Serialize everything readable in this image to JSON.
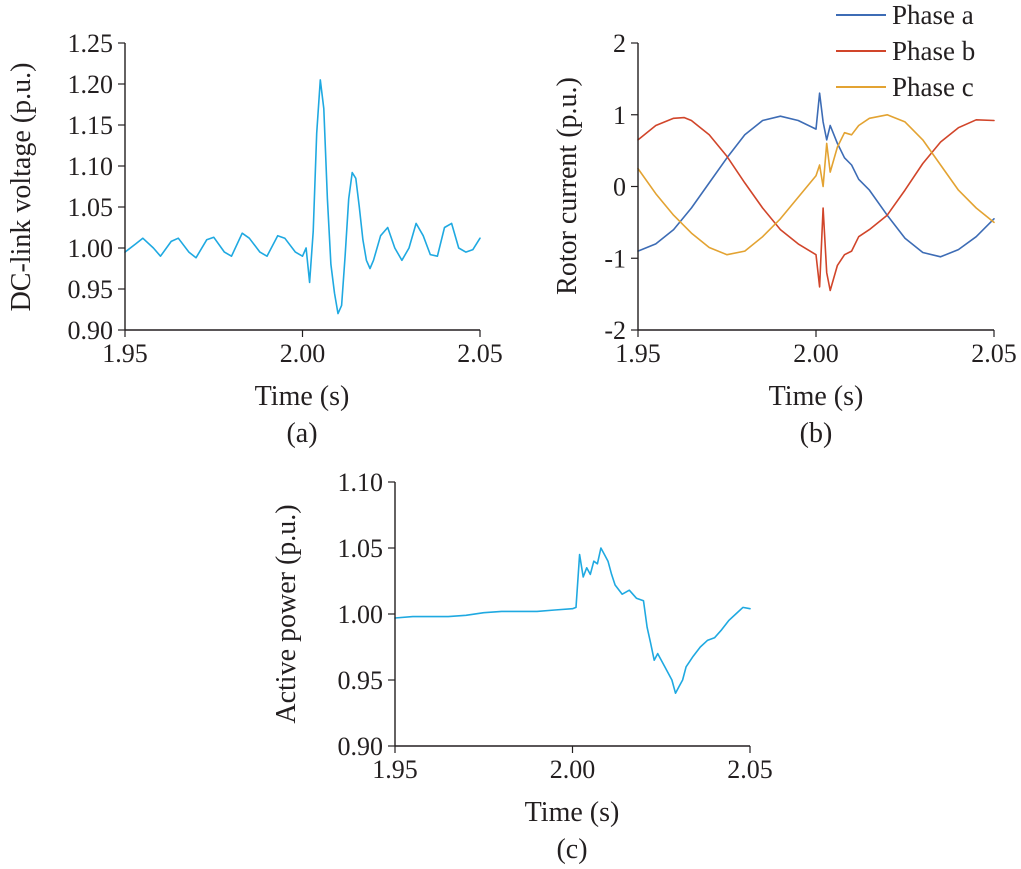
{
  "colors": {
    "cyan": "#1fa9e1",
    "phase_a": "#3d6cb5",
    "phase_b": "#d1452a",
    "phase_c": "#e3a332",
    "axis": "#231f20"
  },
  "chart_data": [
    {
      "id": "a",
      "type": "line",
      "caption": "(a)",
      "xlabel": "Time (s)",
      "ylabel": "DC-link voltage (p.u.)",
      "xlim": [
        1.95,
        2.05
      ],
      "ylim": [
        0.9,
        1.25
      ],
      "xticks": [
        "1.95",
        "2.00",
        "2.05"
      ],
      "yticks": [
        "0.90",
        "0.95",
        "1.00",
        "1.05",
        "1.10",
        "1.15",
        "1.20",
        "1.25"
      ],
      "series": [
        {
          "color": "#1fa9e1",
          "x": [
            1.95,
            1.953,
            1.955,
            1.958,
            1.96,
            1.963,
            1.965,
            1.968,
            1.97,
            1.973,
            1.975,
            1.978,
            1.98,
            1.983,
            1.985,
            1.988,
            1.99,
            1.993,
            1.995,
            1.998,
            2.0,
            2.001,
            2.002,
            2.003,
            2.004,
            2.005,
            2.006,
            2.007,
            2.008,
            2.009,
            2.01,
            2.011,
            2.012,
            2.013,
            2.014,
            2.015,
            2.016,
            2.017,
            2.018,
            2.019,
            2.02,
            2.022,
            2.024,
            2.026,
            2.028,
            2.03,
            2.032,
            2.034,
            2.036,
            2.038,
            2.04,
            2.042,
            2.044,
            2.046,
            2.048,
            2.05
          ],
          "y": [
            0.995,
            1.005,
            1.012,
            1.0,
            0.99,
            1.008,
            1.012,
            0.995,
            0.988,
            1.01,
            1.013,
            0.995,
            0.99,
            1.018,
            1.012,
            0.995,
            0.99,
            1.015,
            1.012,
            0.995,
            0.99,
            1.0,
            0.958,
            1.02,
            1.14,
            1.205,
            1.17,
            1.06,
            0.98,
            0.945,
            0.92,
            0.93,
            0.99,
            1.06,
            1.092,
            1.085,
            1.05,
            1.01,
            0.985,
            0.975,
            0.985,
            1.015,
            1.025,
            1.0,
            0.985,
            1.0,
            1.03,
            1.015,
            0.992,
            0.99,
            1.025,
            1.03,
            1.0,
            0.995,
            0.998,
            1.012
          ]
        }
      ]
    },
    {
      "id": "b",
      "type": "line",
      "caption": "(b)",
      "xlabel": "Time (s)",
      "ylabel": "Rotor current (p.u.)",
      "xlim": [
        1.95,
        2.05
      ],
      "ylim": [
        -2,
        2
      ],
      "xticks": [
        "1.95",
        "2.00",
        "2.05"
      ],
      "yticks": [
        "-2",
        "-1",
        "0",
        "1",
        "2"
      ],
      "legend": {
        "position": "top-right"
      },
      "series": [
        {
          "name": "Phase a",
          "color": "#3d6cb5",
          "x": [
            1.95,
            1.955,
            1.96,
            1.965,
            1.97,
            1.975,
            1.98,
            1.985,
            1.99,
            1.995,
            2.0,
            2.001,
            2.002,
            2.003,
            2.004,
            2.006,
            2.008,
            2.01,
            2.012,
            2.015,
            2.02,
            2.025,
            2.03,
            2.035,
            2.04,
            2.045,
            2.05
          ],
          "y": [
            -0.9,
            -0.8,
            -0.6,
            -0.3,
            0.05,
            0.4,
            0.72,
            0.92,
            0.98,
            0.92,
            0.8,
            1.3,
            0.9,
            0.65,
            0.85,
            0.6,
            0.4,
            0.3,
            0.1,
            -0.05,
            -0.4,
            -0.72,
            -0.92,
            -0.98,
            -0.88,
            -0.7,
            -0.45
          ]
        },
        {
          "name": "Phase b",
          "color": "#d1452a",
          "x": [
            1.95,
            1.955,
            1.96,
            1.963,
            1.965,
            1.97,
            1.975,
            1.98,
            1.985,
            1.99,
            1.995,
            2.0,
            2.001,
            2.002,
            2.003,
            2.004,
            2.006,
            2.008,
            2.01,
            2.012,
            2.015,
            2.02,
            2.025,
            2.03,
            2.035,
            2.04,
            2.045,
            2.05
          ],
          "y": [
            0.65,
            0.85,
            0.95,
            0.96,
            0.92,
            0.72,
            0.42,
            0.05,
            -0.3,
            -0.6,
            -0.8,
            -0.95,
            -1.4,
            -0.3,
            -1.2,
            -1.45,
            -1.1,
            -0.95,
            -0.9,
            -0.7,
            -0.6,
            -0.4,
            -0.05,
            0.32,
            0.62,
            0.82,
            0.93,
            0.92
          ]
        },
        {
          "name": "Phase c",
          "color": "#e3a332",
          "x": [
            1.95,
            1.955,
            1.96,
            1.965,
            1.97,
            1.975,
            1.98,
            1.985,
            1.99,
            1.995,
            2.0,
            2.001,
            2.002,
            2.003,
            2.004,
            2.006,
            2.008,
            2.01,
            2.012,
            2.015,
            2.02,
            2.025,
            2.03,
            2.035,
            2.04,
            2.045,
            2.05
          ],
          "y": [
            0.25,
            -0.1,
            -0.4,
            -0.65,
            -0.85,
            -0.95,
            -0.9,
            -0.7,
            -0.45,
            -0.15,
            0.15,
            0.3,
            0.0,
            0.6,
            0.2,
            0.55,
            0.75,
            0.72,
            0.85,
            0.95,
            1.0,
            0.9,
            0.65,
            0.3,
            -0.05,
            -0.3,
            -0.5
          ]
        }
      ]
    },
    {
      "id": "c",
      "type": "line",
      "caption": "(c)",
      "xlabel": "Time (s)",
      "ylabel": "Active power (p.u.)",
      "xlim": [
        1.95,
        2.05
      ],
      "ylim": [
        0.9,
        1.1
      ],
      "xticks": [
        "1.95",
        "2.00",
        "2.05"
      ],
      "yticks": [
        "0.90",
        "0.95",
        "1.00",
        "1.05",
        "1.10"
      ],
      "series": [
        {
          "color": "#1fa9e1",
          "x": [
            1.95,
            1.955,
            1.96,
            1.965,
            1.97,
            1.975,
            1.98,
            1.985,
            1.99,
            1.995,
            2.0,
            2.001,
            2.002,
            2.003,
            2.004,
            2.005,
            2.006,
            2.007,
            2.008,
            2.009,
            2.01,
            2.011,
            2.012,
            2.014,
            2.016,
            2.018,
            2.02,
            2.021,
            2.022,
            2.023,
            2.024,
            2.026,
            2.028,
            2.029,
            2.03,
            2.031,
            2.032,
            2.034,
            2.036,
            2.038,
            2.04,
            2.042,
            2.044,
            2.046,
            2.048,
            2.05
          ],
          "y": [
            0.997,
            0.998,
            0.998,
            0.998,
            0.999,
            1.001,
            1.002,
            1.002,
            1.002,
            1.003,
            1.004,
            1.005,
            1.045,
            1.028,
            1.035,
            1.03,
            1.04,
            1.038,
            1.05,
            1.045,
            1.04,
            1.03,
            1.022,
            1.015,
            1.018,
            1.012,
            1.01,
            0.99,
            0.978,
            0.965,
            0.97,
            0.96,
            0.95,
            0.94,
            0.945,
            0.95,
            0.96,
            0.968,
            0.975,
            0.98,
            0.982,
            0.988,
            0.995,
            1.0,
            1.005,
            1.004
          ]
        }
      ]
    }
  ]
}
